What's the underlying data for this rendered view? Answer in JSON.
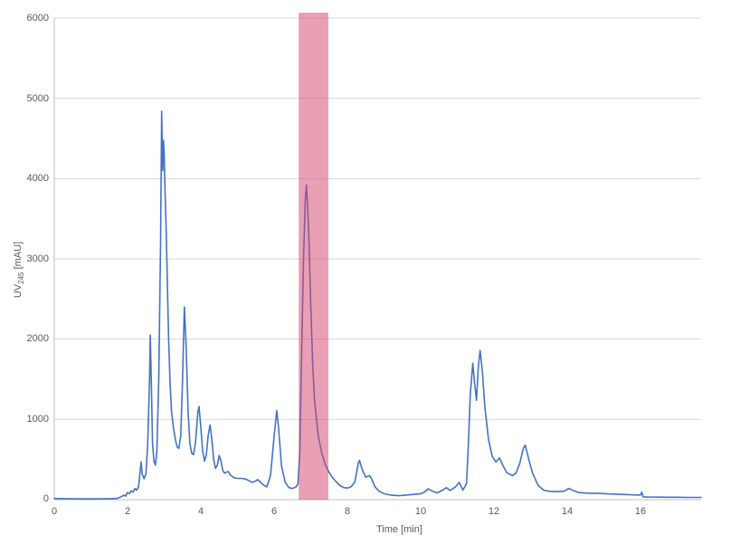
{
  "page": {
    "background_color": "#FFFFFF",
    "description": "HPLC chromatogram chart with a pink highlighted retention-time window"
  },
  "chart_data": {
    "type": "line",
    "title": "",
    "xlabel": "Time [min]",
    "ylabel": "UV245 [mAU]",
    "ylabel_parts": {
      "prefix": "UV",
      "subscript": "245",
      "suffix": " [mAU]"
    },
    "xlim": [
      0,
      17.65
    ],
    "ylim": [
      0,
      6000
    ],
    "xticks": [
      0,
      2,
      4,
      6,
      8,
      10,
      12,
      14,
      16
    ],
    "xtick_labels": [
      "0",
      "2",
      "4",
      "6",
      "8",
      "10",
      "12",
      "14",
      "16"
    ],
    "yticks": [
      0,
      1000,
      2000,
      3000,
      4000,
      5000,
      6000
    ],
    "ytick_labels": [
      "0",
      "1000",
      "2000",
      "3000",
      "4000",
      "5000",
      "6000"
    ],
    "grid": "horizontal",
    "legend": "none",
    "line_color": "#4472C4",
    "grid_color": "#D9D9D9",
    "axis_color": "#BFBFBF",
    "tick_text_color": "#595959",
    "highlight_region": {
      "t_start": 6.67,
      "t_end": 7.48,
      "color": "#D34169",
      "opacity": 0.5,
      "description": "pink band over peak eluting near 6.9 min"
    },
    "major_peaks": [
      {
        "t_min": 2.37,
        "mAU": 470
      },
      {
        "t_min": 2.62,
        "mAU": 2050
      },
      {
        "t_min": 2.93,
        "mAU": 4840
      },
      {
        "t_min": 2.98,
        "mAU": 4480
      },
      {
        "t_min": 3.55,
        "mAU": 2400
      },
      {
        "t_min": 3.95,
        "mAU": 1160
      },
      {
        "t_min": 4.25,
        "mAU": 930
      },
      {
        "t_min": 4.5,
        "mAU": 550
      },
      {
        "t_min": 6.07,
        "mAU": 1110
      },
      {
        "t_min": 6.88,
        "mAU": 3920
      },
      {
        "t_min": 8.33,
        "mAU": 490
      },
      {
        "t_min": 11.42,
        "mAU": 1700
      },
      {
        "t_min": 11.62,
        "mAU": 1860
      },
      {
        "t_min": 12.15,
        "mAU": 520
      },
      {
        "t_min": 12.85,
        "mAU": 680
      },
      {
        "t_min": 14.05,
        "mAU": 140
      }
    ],
    "series": [
      {
        "name": "UV chromatogram",
        "points": [
          [
            0,
            15
          ],
          [
            0.3,
            12
          ],
          [
            0.6,
            10
          ],
          [
            0.9,
            10
          ],
          [
            1.2,
            10
          ],
          [
            1.5,
            12
          ],
          [
            1.7,
            15
          ],
          [
            1.8,
            30
          ],
          [
            1.9,
            55
          ],
          [
            1.95,
            45
          ],
          [
            2.0,
            90
          ],
          [
            2.05,
            75
          ],
          [
            2.1,
            110
          ],
          [
            2.15,
            95
          ],
          [
            2.2,
            140
          ],
          [
            2.25,
            120
          ],
          [
            2.3,
            160
          ],
          [
            2.33,
            300
          ],
          [
            2.37,
            470
          ],
          [
            2.4,
            320
          ],
          [
            2.45,
            260
          ],
          [
            2.5,
            320
          ],
          [
            2.55,
            700
          ],
          [
            2.6,
            1500
          ],
          [
            2.62,
            2050
          ],
          [
            2.65,
            1400
          ],
          [
            2.68,
            700
          ],
          [
            2.72,
            480
          ],
          [
            2.76,
            430
          ],
          [
            2.8,
            600
          ],
          [
            2.85,
            1500
          ],
          [
            2.9,
            3200
          ],
          [
            2.93,
            4840
          ],
          [
            2.95,
            4300
          ],
          [
            2.96,
            4100
          ],
          [
            2.98,
            4480
          ],
          [
            3.0,
            4300
          ],
          [
            3.02,
            3900
          ],
          [
            3.05,
            3400
          ],
          [
            3.08,
            2800
          ],
          [
            3.12,
            2000
          ],
          [
            3.16,
            1450
          ],
          [
            3.2,
            1100
          ],
          [
            3.25,
            900
          ],
          [
            3.3,
            760
          ],
          [
            3.35,
            660
          ],
          [
            3.4,
            640
          ],
          [
            3.45,
            800
          ],
          [
            3.5,
            1500
          ],
          [
            3.55,
            2400
          ],
          [
            3.6,
            1900
          ],
          [
            3.65,
            1100
          ],
          [
            3.7,
            700
          ],
          [
            3.75,
            580
          ],
          [
            3.8,
            560
          ],
          [
            3.85,
            700
          ],
          [
            3.92,
            1100
          ],
          [
            3.95,
            1160
          ],
          [
            4.0,
            900
          ],
          [
            4.05,
            600
          ],
          [
            4.1,
            480
          ],
          [
            4.15,
            560
          ],
          [
            4.2,
            800
          ],
          [
            4.25,
            930
          ],
          [
            4.3,
            750
          ],
          [
            4.35,
            500
          ],
          [
            4.4,
            390
          ],
          [
            4.45,
            430
          ],
          [
            4.5,
            550
          ],
          [
            4.55,
            480
          ],
          [
            4.6,
            360
          ],
          [
            4.65,
            330
          ],
          [
            4.7,
            345
          ],
          [
            4.75,
            350
          ],
          [
            4.8,
            310
          ],
          [
            4.9,
            275
          ],
          [
            5.0,
            265
          ],
          [
            5.1,
            265
          ],
          [
            5.2,
            260
          ],
          [
            5.3,
            240
          ],
          [
            5.4,
            215
          ],
          [
            5.5,
            235
          ],
          [
            5.55,
            250
          ],
          [
            5.6,
            230
          ],
          [
            5.7,
            185
          ],
          [
            5.8,
            160
          ],
          [
            5.9,
            300
          ],
          [
            6.0,
            800
          ],
          [
            6.07,
            1110
          ],
          [
            6.12,
            900
          ],
          [
            6.2,
            420
          ],
          [
            6.3,
            220
          ],
          [
            6.4,
            150
          ],
          [
            6.5,
            140
          ],
          [
            6.6,
            160
          ],
          [
            6.65,
            200
          ],
          [
            6.7,
            600
          ],
          [
            6.75,
            1800
          ],
          [
            6.8,
            3000
          ],
          [
            6.85,
            3750
          ],
          [
            6.88,
            3920
          ],
          [
            6.92,
            3600
          ],
          [
            6.95,
            3250
          ],
          [
            7.0,
            2400
          ],
          [
            7.05,
            1700
          ],
          [
            7.1,
            1250
          ],
          [
            7.2,
            800
          ],
          [
            7.3,
            580
          ],
          [
            7.4,
            430
          ],
          [
            7.5,
            340
          ],
          [
            7.6,
            270
          ],
          [
            7.7,
            220
          ],
          [
            7.8,
            175
          ],
          [
            7.9,
            150
          ],
          [
            8.0,
            145
          ],
          [
            8.1,
            160
          ],
          [
            8.2,
            220
          ],
          [
            8.3,
            460
          ],
          [
            8.33,
            490
          ],
          [
            8.4,
            380
          ],
          [
            8.5,
            280
          ],
          [
            8.6,
            300
          ],
          [
            8.65,
            270
          ],
          [
            8.75,
            160
          ],
          [
            8.85,
            110
          ],
          [
            9.0,
            75
          ],
          [
            9.2,
            55
          ],
          [
            9.4,
            50
          ],
          [
            9.6,
            58
          ],
          [
            9.8,
            65
          ],
          [
            10.0,
            75
          ],
          [
            10.1,
            95
          ],
          [
            10.2,
            135
          ],
          [
            10.3,
            110
          ],
          [
            10.45,
            85
          ],
          [
            10.6,
            120
          ],
          [
            10.7,
            150
          ],
          [
            10.8,
            115
          ],
          [
            10.95,
            160
          ],
          [
            11.05,
            215
          ],
          [
            11.15,
            120
          ],
          [
            11.25,
            200
          ],
          [
            11.3,
            700
          ],
          [
            11.35,
            1300
          ],
          [
            11.42,
            1700
          ],
          [
            11.47,
            1450
          ],
          [
            11.52,
            1240
          ],
          [
            11.57,
            1650
          ],
          [
            11.62,
            1860
          ],
          [
            11.68,
            1600
          ],
          [
            11.75,
            1150
          ],
          [
            11.85,
            750
          ],
          [
            11.95,
            540
          ],
          [
            12.05,
            470
          ],
          [
            12.15,
            520
          ],
          [
            12.25,
            420
          ],
          [
            12.35,
            335
          ],
          [
            12.5,
            300
          ],
          [
            12.6,
            330
          ],
          [
            12.7,
            450
          ],
          [
            12.8,
            640
          ],
          [
            12.85,
            680
          ],
          [
            12.95,
            500
          ],
          [
            13.05,
            330
          ],
          [
            13.2,
            180
          ],
          [
            13.35,
            120
          ],
          [
            13.5,
            105
          ],
          [
            13.7,
            100
          ],
          [
            13.9,
            105
          ],
          [
            14.0,
            130
          ],
          [
            14.05,
            140
          ],
          [
            14.15,
            115
          ],
          [
            14.3,
            90
          ],
          [
            14.5,
            82
          ],
          [
            14.7,
            80
          ],
          [
            14.9,
            78
          ],
          [
            15.1,
            72
          ],
          [
            15.3,
            70
          ],
          [
            15.5,
            65
          ],
          [
            15.7,
            62
          ],
          [
            15.9,
            58
          ],
          [
            16.0,
            60
          ],
          [
            16.03,
            95
          ],
          [
            16.07,
            35
          ],
          [
            16.2,
            33
          ],
          [
            16.5,
            32
          ],
          [
            16.8,
            30
          ],
          [
            17.0,
            30
          ],
          [
            17.3,
            28
          ],
          [
            17.65,
            28
          ]
        ]
      }
    ]
  }
}
